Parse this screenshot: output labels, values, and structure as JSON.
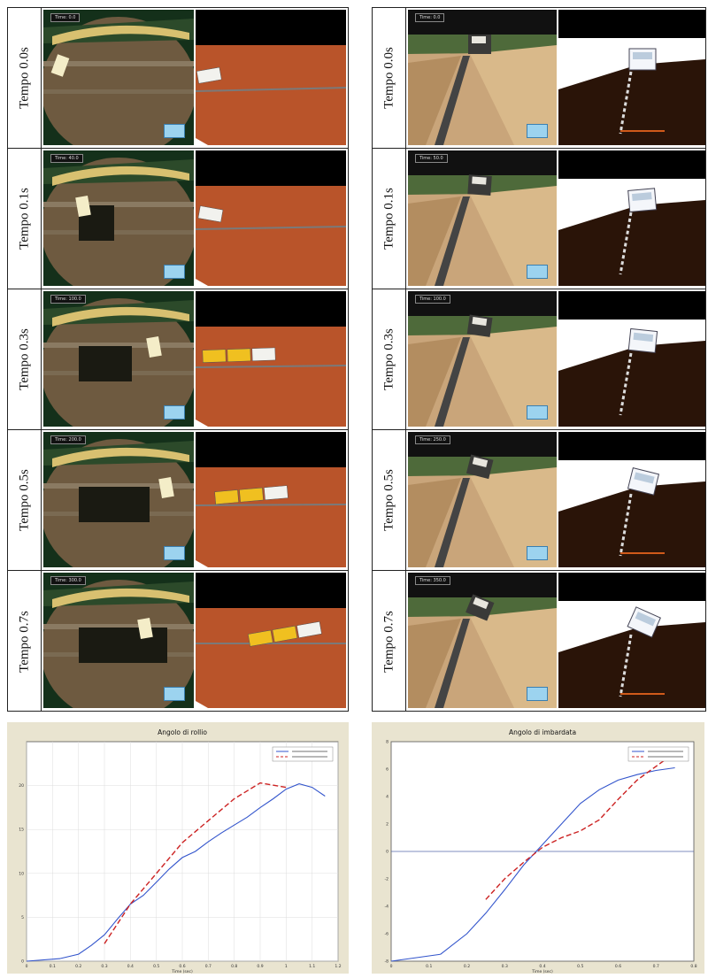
{
  "figure": {
    "left_rows": [
      {
        "label": "Tempo 0.0s",
        "time": "0.0"
      },
      {
        "label": "Tempo 0.1s",
        "time": "40.0"
      },
      {
        "label": "Tempo 0.3s",
        "time": "100.0"
      },
      {
        "label": "Tempo 0.5s",
        "time": "200.0"
      },
      {
        "label": "Tempo 0.7s",
        "time": "300.0"
      }
    ],
    "right_rows": [
      {
        "label": "Tempo 0.0s",
        "time": "0.0"
      },
      {
        "label": "Tempo 0.1s",
        "time": "50.0"
      },
      {
        "label": "Tempo 0.3s",
        "time": "100.0"
      },
      {
        "label": "Tempo 0.5s",
        "time": "250.0"
      },
      {
        "label": "Tempo 0.7s",
        "time": "350.0"
      }
    ],
    "time_prefix": "Time:"
  },
  "chart_data": [
    {
      "type": "line",
      "title": "Angolo di rollio",
      "xlabel": "Time (sec)",
      "ylabel": "",
      "xlim": [
        0,
        1.2
      ],
      "ylim": [
        0,
        25
      ],
      "xticks": [
        "0",
        "0.1",
        "0.2",
        "0.3",
        "0.4",
        "0.5",
        "0.6",
        "0.7",
        "0.8",
        "0.9",
        "1",
        "1.1",
        "1.2"
      ],
      "yticks": [
        "0",
        "5",
        "10",
        "15",
        "20"
      ],
      "grid": true,
      "legend_position": "top-right",
      "series": [
        {
          "name": "",
          "color": "#3355cc",
          "style": "solid",
          "x": [
            0.13,
            0.2,
            0.25,
            0.3,
            0.35,
            0.4,
            0.45,
            0.5,
            0.55,
            0.6,
            0.65,
            0.7,
            0.75,
            0.8,
            0.85,
            0.9,
            0.95,
            1.0,
            1.05,
            1.1,
            1.15
          ],
          "y": [
            0.3,
            0.8,
            1.8,
            3.0,
            4.8,
            6.5,
            7.5,
            9.0,
            10.5,
            11.8,
            12.5,
            13.6,
            14.6,
            15.5,
            16.4,
            17.5,
            18.5,
            19.6,
            20.2,
            19.8,
            18.8
          ]
        },
        {
          "name": "",
          "color": "#cc2222",
          "style": "dashed",
          "x": [
            0.3,
            0.4,
            0.5,
            0.6,
            0.7,
            0.8,
            0.9,
            1.0
          ],
          "y": [
            2.0,
            6.5,
            10.0,
            13.5,
            16.0,
            18.5,
            20.3,
            19.8
          ]
        }
      ]
    },
    {
      "type": "line",
      "title": "Angolo di imbardata",
      "xlabel": "Time (sec)",
      "ylabel": "",
      "xlim": [
        0,
        0.8
      ],
      "ylim": [
        -8,
        8
      ],
      "xticks": [
        "0",
        "0.1",
        "0.2",
        "0.3",
        "0.4",
        "0.5",
        "0.6",
        "0.7",
        "0.8"
      ],
      "yticks": [
        "-8",
        "-6",
        "-4",
        "-2",
        "0",
        "2",
        "4",
        "6",
        "8"
      ],
      "grid": false,
      "legend_position": "top-right",
      "series": [
        {
          "name": "",
          "color": "#3355cc",
          "style": "solid",
          "x": [
            0.13,
            0.2,
            0.25,
            0.3,
            0.35,
            0.4,
            0.45,
            0.5,
            0.55,
            0.6,
            0.65,
            0.7,
            0.75
          ],
          "y": [
            -7.5,
            -6.0,
            -4.5,
            -2.8,
            -1.0,
            0.5,
            2.0,
            3.5,
            4.5,
            5.2,
            5.6,
            5.9,
            6.1
          ]
        },
        {
          "name": "",
          "color": "#cc2222",
          "style": "dashed",
          "x": [
            0.25,
            0.3,
            0.35,
            0.4,
            0.45,
            0.5,
            0.55,
            0.6,
            0.65,
            0.7,
            0.75
          ],
          "y": [
            -3.5,
            -2.0,
            -0.8,
            0.3,
            1.0,
            1.5,
            2.3,
            3.8,
            5.2,
            6.2,
            7.2
          ]
        }
      ]
    }
  ]
}
